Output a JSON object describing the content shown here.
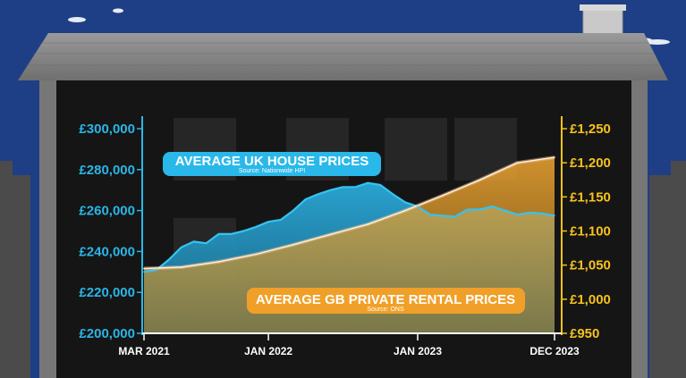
{
  "chart_data": {
    "type": "line",
    "x_labels": [
      "MAR 2021",
      "JAN 2022",
      "JAN 2023",
      "DEC 2023"
    ],
    "x_tick_dates": [
      "2021-03",
      "2022-01",
      "2023-01",
      "2023-12"
    ],
    "y_left": {
      "ticks": [
        "£300,000",
        "£280,000",
        "£260,000",
        "£240,000",
        "£220,000",
        "£200,000"
      ],
      "range": [
        200000,
        300000
      ],
      "color": "#29b6e6"
    },
    "y_right": {
      "ticks": [
        "£1,250",
        "£1,200",
        "£1,150",
        "£1,100",
        "£1,050",
        "£1,000",
        "£950"
      ],
      "range": [
        950,
        1250
      ],
      "color": "#f6c21c"
    },
    "series": [
      {
        "name": "AVERAGE UK HOUSE PRICES",
        "source": "Source: Nationwide HPI",
        "axis": "left",
        "color": "#2ab8ea",
        "dates": [
          "2021-03",
          "2021-04",
          "2021-05",
          "2021-06",
          "2021-07",
          "2021-08",
          "2021-09",
          "2021-10",
          "2021-11",
          "2021-12",
          "2022-01",
          "2022-02",
          "2022-03",
          "2022-04",
          "2022-05",
          "2022-06",
          "2022-07",
          "2022-08",
          "2022-09",
          "2022-10",
          "2022-11",
          "2022-12",
          "2023-01",
          "2023-02",
          "2023-03",
          "2023-04",
          "2023-05",
          "2023-06",
          "2023-07",
          "2023-08",
          "2023-09",
          "2023-10",
          "2023-11",
          "2023-12"
        ],
        "values": [
          230000,
          231000,
          236000,
          242000,
          244800,
          244000,
          248500,
          248500,
          250000,
          252000,
          254500,
          255500,
          260000,
          265500,
          268000,
          270000,
          271500,
          271500,
          273500,
          272500,
          268000,
          264000,
          262000,
          258000,
          257500,
          257000,
          260500,
          260500,
          262000,
          260000,
          258000,
          259000,
          258500,
          257500
        ]
      },
      {
        "name": "AVERAGE GB PRIVATE RENTAL PRICES",
        "source": "Source: ONS",
        "axis": "right",
        "color": "#f0a028",
        "dates": [
          "2021-03",
          "2021-06",
          "2021-09",
          "2021-12",
          "2022-03",
          "2022-06",
          "2022-09",
          "2022-12",
          "2023-03",
          "2023-06",
          "2023-09",
          "2023-12"
        ],
        "values": [
          1045,
          1047,
          1055,
          1066,
          1080,
          1095,
          1110,
          1130,
          1152,
          1175,
          1200,
          1208
        ]
      }
    ]
  }
}
